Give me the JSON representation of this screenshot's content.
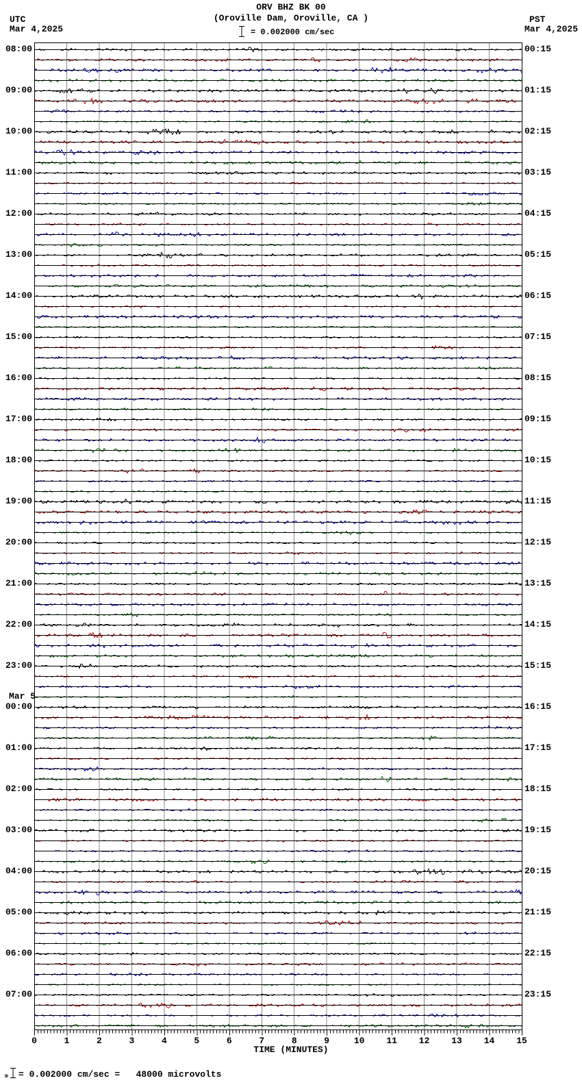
{
  "header": {
    "title": "ORV BHZ BK 00",
    "subtitle": "(Oroville Dam, Oroville, CA )",
    "scale": {
      "icon": "vertical-scale-bar",
      "text": "= 0.002000 cm/sec"
    },
    "utc": {
      "zone": "UTC",
      "date": "Mar 4,2025"
    },
    "pst": {
      "zone": "PST",
      "date": "Mar 4,2025"
    }
  },
  "chart_data": {
    "type": "line",
    "subtype": "helicorder-seismogram",
    "station": "ORV BHZ BK 00",
    "location": "(Oroville Dam, Oroville, CA )",
    "xlabel": "TIME (MINUTES)",
    "x_ticks": [
      "0",
      "1",
      "2",
      "3",
      "4",
      "5",
      "6",
      "7",
      "8",
      "9",
      "10",
      "11",
      "12",
      "13",
      "14",
      "15"
    ],
    "x_range": [
      0,
      15
    ],
    "x_minor_divisions_per_minute": 10,
    "minutes_per_line": 15,
    "lines_total": 96,
    "traces_per_hour": 4,
    "trace_color_cycle": [
      "#000000",
      "#c00000",
      "#0000c0",
      "#007000"
    ],
    "grid_color": "#888888",
    "hours_utc": [
      "08:00",
      "09:00",
      "10:00",
      "11:00",
      "12:00",
      "13:00",
      "14:00",
      "15:00",
      "16:00",
      "17:00",
      "18:00",
      "19:00",
      "20:00",
      "21:00",
      "22:00",
      "23:00",
      "00:00",
      "01:00",
      "02:00",
      "03:00",
      "04:00",
      "05:00",
      "06:00",
      "07:00"
    ],
    "hours_pst": [
      "00:15",
      "01:15",
      "02:15",
      "03:15",
      "04:15",
      "05:15",
      "06:15",
      "07:15",
      "08:15",
      "09:15",
      "10:15",
      "11:15",
      "12:15",
      "13:15",
      "14:15",
      "15:15",
      "16:15",
      "17:15",
      "18:15",
      "19:15",
      "20:15",
      "21:15",
      "22:15",
      "23:15"
    ],
    "utc_day_change": {
      "label": "Mar 5",
      "at_hour_index": 16
    },
    "signal_description": "low-amplitude background noise (~1-3 px) on all 96 lines; no visible seismic events",
    "scale_reference": "= 0.002000 cm/sec"
  },
  "footer": {
    "prefix": "m",
    "icon": "vertical-scale-bar",
    "text": "= 0.002000 cm/sec =   48000 microvolts"
  }
}
